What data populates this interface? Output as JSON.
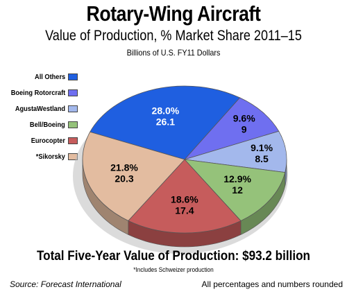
{
  "chart_data": {
    "type": "pie",
    "title": "Rotary-Wing Aircraft",
    "subtitle": "Value of Production, % Market Share 2011–15",
    "units": "Billions of U.S. FY11 Dollars",
    "slices": [
      {
        "name": "All Others",
        "percent_label": "28.0%",
        "value_label": "26.1",
        "percent": 28.0,
        "value": 26.1,
        "color": "#1f5fe0"
      },
      {
        "name": "Boeing Rotorcraft",
        "percent_label": "9.6%",
        "value_label": "9",
        "percent": 9.6,
        "value": 9,
        "color": "#6f6ff0"
      },
      {
        "name": "AgustaWestland",
        "percent_label": "9.1%",
        "value_label": "8.5",
        "percent": 9.1,
        "value": 8.5,
        "color": "#a3b8ec"
      },
      {
        "name": "Bell/Boeing",
        "percent_label": "12.9%",
        "value_label": "12",
        "percent": 12.9,
        "value": 12,
        "color": "#95c27a"
      },
      {
        "name": "Eurocopter",
        "percent_label": "18.6%",
        "value_label": "17.4",
        "percent": 18.6,
        "value": 17.4,
        "color": "#c65c5c"
      },
      {
        "name": "*Sikorsky",
        "percent_label": "21.8%",
        "value_label": "20.3",
        "percent": 21.8,
        "value": 20.3,
        "color": "#e3bca0"
      }
    ],
    "legend_position": "left"
  },
  "footer": {
    "total": "Total Five-Year Value of Production: $93.2 billion",
    "note": "*Includes Schweizer production",
    "source": "Source:  Forecast International",
    "rounded": "All percentages and numbers rounded"
  }
}
